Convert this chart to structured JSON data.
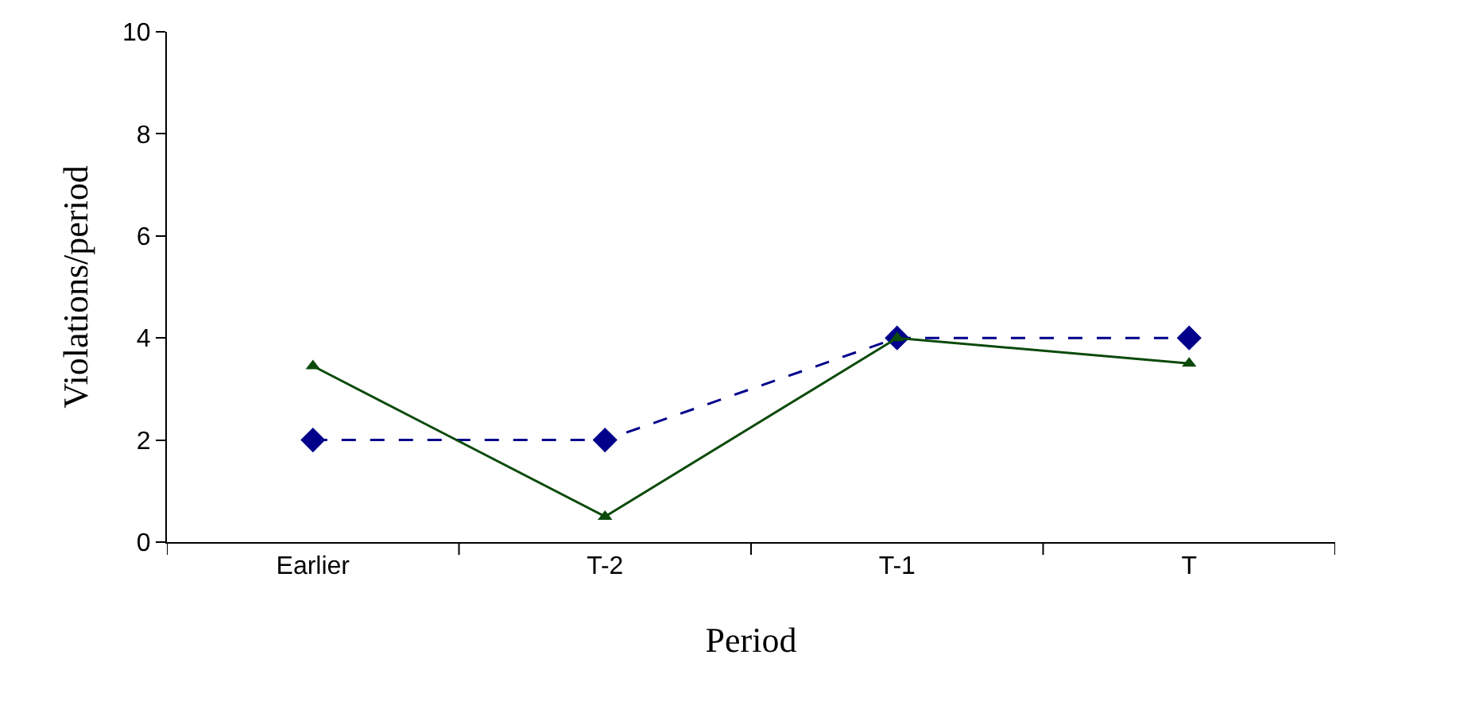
{
  "chart_data": {
    "type": "line",
    "xlabel": "Period",
    "ylabel": "Violations/period",
    "categories": [
      "Earlier",
      "T-2",
      "T-1",
      "T"
    ],
    "series": [
      {
        "color": "#00008b",
        "values": [
          2,
          2,
          4,
          4
        ],
        "marker": "diamond",
        "line_style": "dashed"
      },
      {
        "color": "#0b4a0b",
        "values": [
          3.45,
          0.5,
          4,
          3.5
        ],
        "marker": "triangle",
        "line_style": "solid"
      }
    ],
    "ylim": [
      0,
      10
    ],
    "yticks": [
      0,
      2,
      4,
      6,
      8,
      10
    ]
  }
}
